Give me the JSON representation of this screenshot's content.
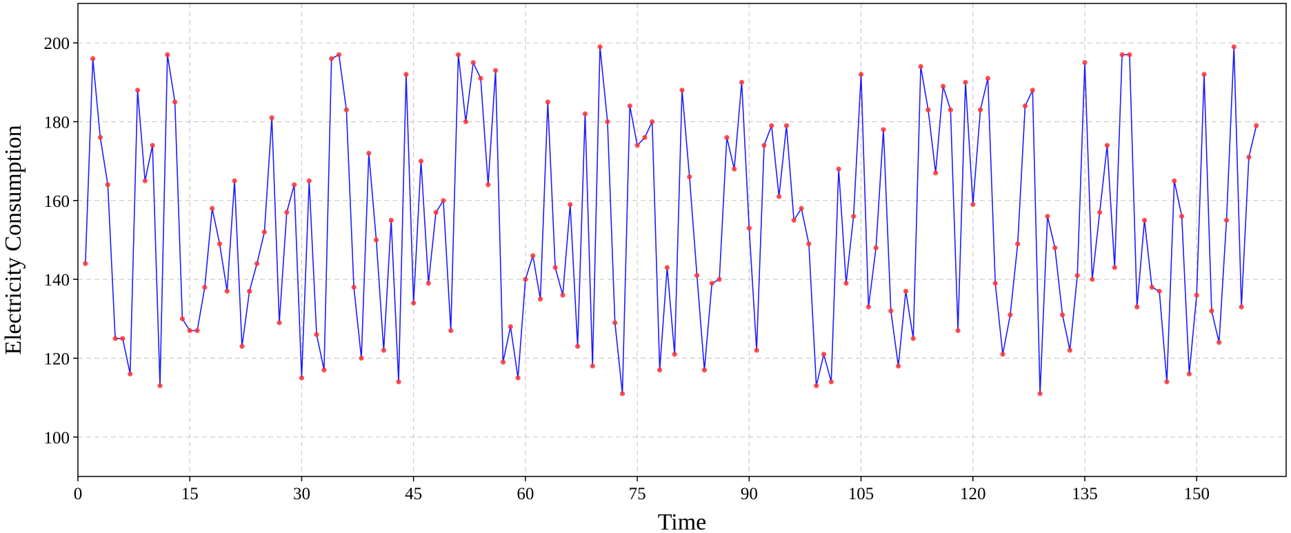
{
  "chart_data": {
    "type": "line",
    "title": "",
    "xlabel": "Time",
    "ylabel": "Electricity Consumption",
    "xlim": [
      0,
      162
    ],
    "ylim": [
      90,
      210
    ],
    "xticks": [
      0,
      15,
      30,
      45,
      60,
      75,
      90,
      105,
      120,
      135,
      150
    ],
    "yticks": [
      100,
      120,
      140,
      160,
      180,
      200
    ],
    "grid": true,
    "legend": "none",
    "line_color": "#1a1aff",
    "marker_color": "#ff3333",
    "series": [
      {
        "x": [
          1,
          2,
          3,
          4,
          5,
          6,
          7,
          8,
          9,
          10,
          11,
          12,
          13,
          14,
          15,
          16,
          17,
          18,
          19,
          20,
          21,
          22,
          23,
          24,
          25,
          26,
          27,
          28,
          29,
          30,
          31,
          32,
          33,
          34,
          35,
          36,
          37,
          38,
          39,
          40,
          41,
          42,
          43,
          44,
          45,
          46,
          47,
          48,
          49,
          50,
          51,
          52,
          53,
          54,
          55,
          56,
          57,
          58,
          59,
          60,
          61,
          62,
          63,
          64,
          65,
          66,
          67,
          68,
          69,
          70,
          71,
          72,
          73,
          74,
          75,
          76,
          77,
          78,
          79,
          80,
          81,
          82,
          83,
          84,
          85,
          86,
          87,
          88,
          89,
          90,
          91,
          92,
          93,
          94,
          95,
          96,
          97,
          98,
          99,
          100,
          101,
          102,
          103,
          104,
          105,
          106,
          107,
          108,
          109,
          110,
          111,
          112,
          113,
          114,
          115,
          116,
          117,
          118,
          119,
          120,
          121,
          122,
          123,
          124,
          125,
          126,
          127,
          128,
          129,
          130,
          131,
          132,
          133,
          134,
          135,
          136,
          137,
          138,
          139,
          140,
          141,
          142,
          143,
          144,
          145,
          146,
          147,
          148,
          149,
          150,
          151,
          152,
          153,
          154,
          155,
          156,
          157,
          158
        ],
        "values": [
          144,
          196,
          176,
          164,
          125,
          125,
          116,
          188,
          165,
          174,
          113,
          197,
          185,
          130,
          127,
          127,
          138,
          158,
          149,
          137,
          165,
          123,
          137,
          144,
          152,
          181,
          129,
          157,
          164,
          115,
          165,
          126,
          117,
          196,
          197,
          183,
          138,
          120,
          172,
          150,
          122,
          155,
          114,
          192,
          134,
          170,
          139,
          157,
          160,
          127,
          197,
          180,
          195,
          191,
          164,
          193,
          119,
          128,
          115,
          140,
          146,
          135,
          185,
          143,
          136,
          159,
          123,
          182,
          118,
          199,
          180,
          129,
          111,
          184,
          174,
          176,
          180,
          117,
          143,
          121,
          188,
          166,
          141,
          117,
          139,
          140,
          176,
          168,
          190,
          153,
          122,
          174,
          179,
          161,
          179,
          155,
          158,
          149,
          113,
          121,
          114,
          168,
          139,
          156,
          192,
          133,
          148,
          178,
          132,
          118,
          137,
          125,
          194,
          183,
          167,
          189,
          183,
          127,
          190,
          159,
          183,
          191,
          139,
          121,
          131,
          149,
          184,
          188,
          111,
          156,
          148,
          131,
          122,
          141,
          195,
          140,
          157,
          174,
          143,
          197,
          197,
          133,
          155,
          138,
          137,
          114,
          165,
          156,
          116,
          136,
          192,
          132,
          124,
          155,
          199,
          133,
          171,
          179
        ]
      }
    ]
  }
}
